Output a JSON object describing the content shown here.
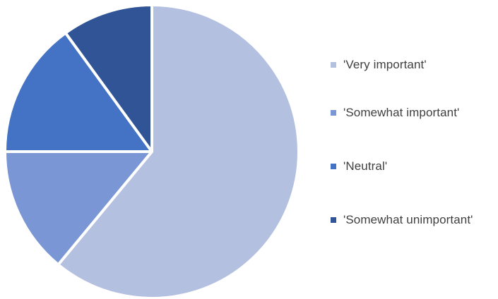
{
  "chart_data": {
    "type": "pie",
    "title": "",
    "categories": [
      "'Very important'",
      "'Somewhat important'",
      "'Neutral'",
      "'Somewhat unimportant'"
    ],
    "values": [
      61,
      14,
      15,
      10
    ],
    "colors": [
      "#b4c0e0",
      "#7a96d4",
      "#4472c4",
      "#305496"
    ],
    "start_angle_degrees_clockwise_from_top": 0,
    "legend_position": "right"
  }
}
